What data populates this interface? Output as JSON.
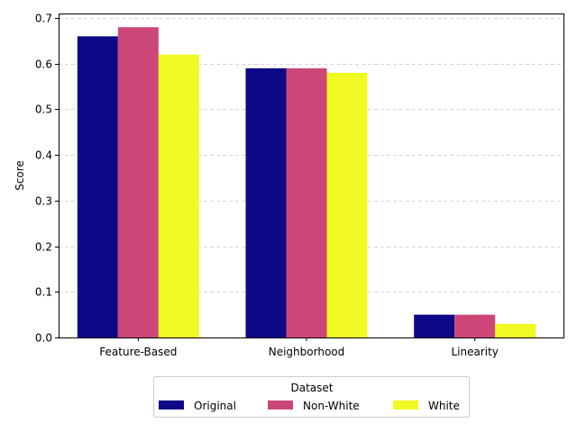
{
  "chart_data": {
    "type": "bar",
    "categories": [
      "Feature-Based",
      "Neighborhood",
      "Linearity"
    ],
    "series": [
      {
        "name": "Original",
        "values": [
          0.66,
          0.59,
          0.05
        ],
        "color": "#0d0887"
      },
      {
        "name": "Non-White",
        "values": [
          0.68,
          0.59,
          0.05
        ],
        "color": "#cc4778"
      },
      {
        "name": "White",
        "values": [
          0.62,
          0.58,
          0.03
        ],
        "color": "#f0f921"
      }
    ],
    "title": "",
    "xlabel": "",
    "ylabel": "Score",
    "ylim": [
      0,
      0.71
    ],
    "yticks": [
      "0.0",
      "0.1",
      "0.2",
      "0.3",
      "0.4",
      "0.5",
      "0.6",
      "0.7"
    ],
    "grid": "y-dashed",
    "legend": {
      "title": "Dataset",
      "placement": "bottom-center"
    }
  }
}
